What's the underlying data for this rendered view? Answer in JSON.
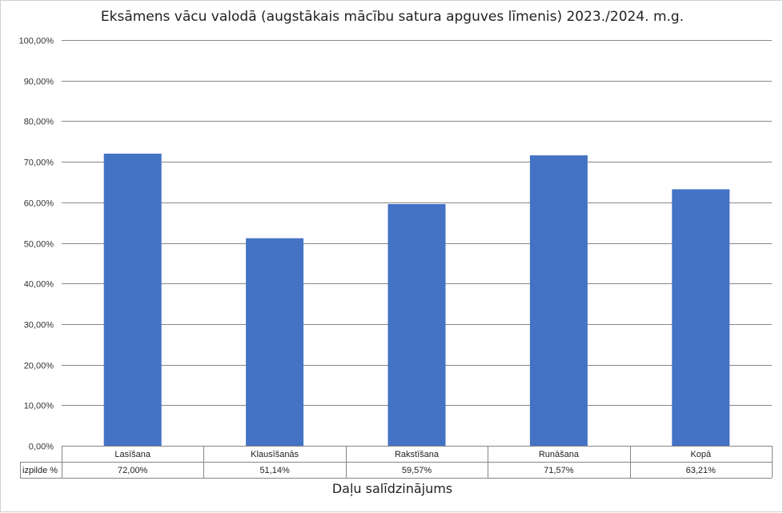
{
  "chart_data": {
    "type": "bar",
    "title": "Eksāmens vācu valodā (augstākais mācību satura apguves līmenis) 2023./2024. m.g.",
    "xlabel": "Daļu salīdzinājums",
    "ylabel": "",
    "categories": [
      "Lasīšana",
      "Klausīšanās",
      "Rakstīšana",
      "Runāšana",
      "Kopā"
    ],
    "series": [
      {
        "name": "izpilde %",
        "values": [
          72.0,
          51.14,
          59.57,
          71.57,
          63.21
        ]
      }
    ],
    "data_labels": [
      "72,00%",
      "51,14%",
      "59,57%",
      "71,57%",
      "63,21%"
    ],
    "ylim": [
      0,
      100
    ],
    "y_ticks": [
      "0,00%",
      "10,00%",
      "20,00%",
      "30,00%",
      "40,00%",
      "50,00%",
      "60,00%",
      "70,00%",
      "80,00%",
      "90,00%",
      "100,00%"
    ],
    "grid": true,
    "legend": "data-table",
    "bar_color": "#4472c4",
    "grid_color": "#868686"
  }
}
